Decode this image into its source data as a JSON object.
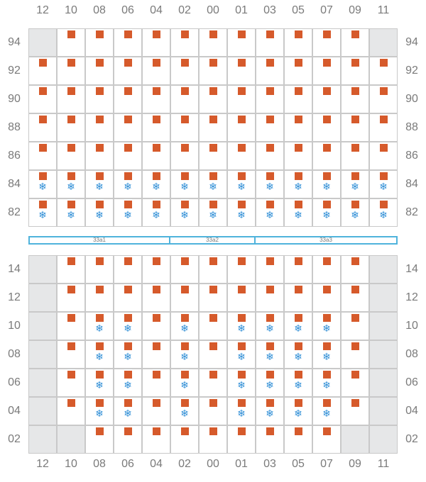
{
  "columns": [
    "12",
    "10",
    "08",
    "06",
    "04",
    "02",
    "00",
    "01",
    "03",
    "05",
    "07",
    "09",
    "11"
  ],
  "colors": {
    "container": "#d65a2b",
    "reefer": "#2f8ed6",
    "bay_border": "#4fb3dc",
    "disabled": "#e6e7e8"
  },
  "icons": {
    "container": "square-marker",
    "reefer": "snowflake-icon"
  },
  "reefer_glyph": "❄",
  "upper": {
    "rows": [
      {
        "label": "94",
        "cells": [
          {
            "disabled": true
          },
          {
            "box": true
          },
          {
            "box": true
          },
          {
            "box": true
          },
          {
            "box": true
          },
          {
            "box": true
          },
          {
            "box": true
          },
          {
            "box": true
          },
          {
            "box": true
          },
          {
            "box": true
          },
          {
            "box": true
          },
          {
            "box": true
          },
          {
            "disabled": true
          }
        ]
      },
      {
        "label": "92",
        "cells": [
          {
            "box": true
          },
          {
            "box": true
          },
          {
            "box": true
          },
          {
            "box": true
          },
          {
            "box": true
          },
          {
            "box": true
          },
          {
            "box": true
          },
          {
            "box": true
          },
          {
            "box": true
          },
          {
            "box": true
          },
          {
            "box": true
          },
          {
            "box": true
          },
          {
            "box": true
          }
        ]
      },
      {
        "label": "90",
        "cells": [
          {
            "box": true
          },
          {
            "box": true
          },
          {
            "box": true
          },
          {
            "box": true
          },
          {
            "box": true
          },
          {
            "box": true
          },
          {
            "box": true
          },
          {
            "box": true
          },
          {
            "box": true
          },
          {
            "box": true
          },
          {
            "box": true
          },
          {
            "box": true
          },
          {
            "box": true
          }
        ]
      },
      {
        "label": "88",
        "cells": [
          {
            "box": true
          },
          {
            "box": true
          },
          {
            "box": true
          },
          {
            "box": true
          },
          {
            "box": true
          },
          {
            "box": true
          },
          {
            "box": true
          },
          {
            "box": true
          },
          {
            "box": true
          },
          {
            "box": true
          },
          {
            "box": true
          },
          {
            "box": true
          },
          {
            "box": true
          }
        ]
      },
      {
        "label": "86",
        "cells": [
          {
            "box": true
          },
          {
            "box": true
          },
          {
            "box": true
          },
          {
            "box": true
          },
          {
            "box": true
          },
          {
            "box": true
          },
          {
            "box": true
          },
          {
            "box": true
          },
          {
            "box": true
          },
          {
            "box": true
          },
          {
            "box": true
          },
          {
            "box": true
          },
          {
            "box": true
          }
        ]
      },
      {
        "label": "84",
        "cells": [
          {
            "box": true,
            "reefer": true
          },
          {
            "box": true,
            "reefer": true
          },
          {
            "box": true,
            "reefer": true
          },
          {
            "box": true,
            "reefer": true
          },
          {
            "box": true,
            "reefer": true
          },
          {
            "box": true,
            "reefer": true
          },
          {
            "box": true,
            "reefer": true
          },
          {
            "box": true,
            "reefer": true
          },
          {
            "box": true,
            "reefer": true
          },
          {
            "box": true,
            "reefer": true
          },
          {
            "box": true,
            "reefer": true
          },
          {
            "box": true,
            "reefer": true
          },
          {
            "box": true,
            "reefer": true
          }
        ]
      },
      {
        "label": "82",
        "cells": [
          {
            "box": true,
            "reefer": true
          },
          {
            "box": true,
            "reefer": true
          },
          {
            "box": true,
            "reefer": true
          },
          {
            "box": true,
            "reefer": true
          },
          {
            "box": true,
            "reefer": true
          },
          {
            "box": true,
            "reefer": true
          },
          {
            "box": true,
            "reefer": true
          },
          {
            "box": true,
            "reefer": true
          },
          {
            "box": true,
            "reefer": true
          },
          {
            "box": true,
            "reefer": true
          },
          {
            "box": true,
            "reefer": true
          },
          {
            "box": true,
            "reefer": true
          },
          {
            "box": true,
            "reefer": true
          }
        ]
      }
    ]
  },
  "bays": [
    {
      "label": "33a1",
      "col_start": 0,
      "col_span": 5
    },
    {
      "label": "33a2",
      "col_start": 5,
      "col_span": 3
    },
    {
      "label": "33a3",
      "col_start": 8,
      "col_span": 5
    }
  ],
  "lower": {
    "rows": [
      {
        "label": "14",
        "cells": [
          {
            "disabled": true
          },
          {
            "box": true
          },
          {
            "box": true
          },
          {
            "box": true
          },
          {
            "box": true
          },
          {
            "box": true
          },
          {
            "box": true
          },
          {
            "box": true
          },
          {
            "box": true
          },
          {
            "box": true
          },
          {
            "box": true
          },
          {
            "box": true
          },
          {
            "disabled": true
          }
        ]
      },
      {
        "label": "12",
        "cells": [
          {
            "disabled": true
          },
          {
            "box": true
          },
          {
            "box": true
          },
          {
            "box": true
          },
          {
            "box": true
          },
          {
            "box": true
          },
          {
            "box": true
          },
          {
            "box": true
          },
          {
            "box": true
          },
          {
            "box": true
          },
          {
            "box": true
          },
          {
            "box": true
          },
          {
            "disabled": true
          }
        ]
      },
      {
        "label": "10",
        "cells": [
          {
            "disabled": true
          },
          {
            "box": true
          },
          {
            "box": true,
            "reefer": true
          },
          {
            "box": true,
            "reefer": true
          },
          {
            "box": true
          },
          {
            "box": true,
            "reefer": true
          },
          {
            "box": true
          },
          {
            "box": true,
            "reefer": true
          },
          {
            "box": true,
            "reefer": true
          },
          {
            "box": true,
            "reefer": true
          },
          {
            "box": true,
            "reefer": true
          },
          {
            "box": true
          },
          {
            "disabled": true
          }
        ]
      },
      {
        "label": "08",
        "cells": [
          {
            "disabled": true
          },
          {
            "box": true
          },
          {
            "box": true,
            "reefer": true
          },
          {
            "box": true,
            "reefer": true
          },
          {
            "box": true
          },
          {
            "box": true,
            "reefer": true
          },
          {
            "box": true
          },
          {
            "box": true,
            "reefer": true
          },
          {
            "box": true,
            "reefer": true
          },
          {
            "box": true,
            "reefer": true
          },
          {
            "box": true,
            "reefer": true
          },
          {
            "box": true
          },
          {
            "disabled": true
          }
        ]
      },
      {
        "label": "06",
        "cells": [
          {
            "disabled": true
          },
          {
            "box": true
          },
          {
            "box": true,
            "reefer": true
          },
          {
            "box": true,
            "reefer": true
          },
          {
            "box": true
          },
          {
            "box": true,
            "reefer": true
          },
          {
            "box": true
          },
          {
            "box": true,
            "reefer": true
          },
          {
            "box": true,
            "reefer": true
          },
          {
            "box": true,
            "reefer": true
          },
          {
            "box": true,
            "reefer": true
          },
          {
            "box": true
          },
          {
            "disabled": true
          }
        ]
      },
      {
        "label": "04",
        "cells": [
          {
            "disabled": true
          },
          {
            "box": true
          },
          {
            "box": true,
            "reefer": true
          },
          {
            "box": true,
            "reefer": true
          },
          {
            "box": true
          },
          {
            "box": true,
            "reefer": true
          },
          {
            "box": true
          },
          {
            "box": true,
            "reefer": true
          },
          {
            "box": true,
            "reefer": true
          },
          {
            "box": true,
            "reefer": true
          },
          {
            "box": true,
            "reefer": true
          },
          {
            "box": true
          },
          {
            "disabled": true
          }
        ]
      },
      {
        "label": "02",
        "cells": [
          {
            "disabled": true
          },
          {
            "disabled": true
          },
          {
            "box": true
          },
          {
            "box": true
          },
          {
            "box": true
          },
          {
            "box": true
          },
          {
            "box": true
          },
          {
            "box": true
          },
          {
            "box": true
          },
          {
            "box": true
          },
          {
            "box": true
          },
          {
            "disabled": true
          },
          {
            "disabled": true
          }
        ]
      }
    ]
  }
}
